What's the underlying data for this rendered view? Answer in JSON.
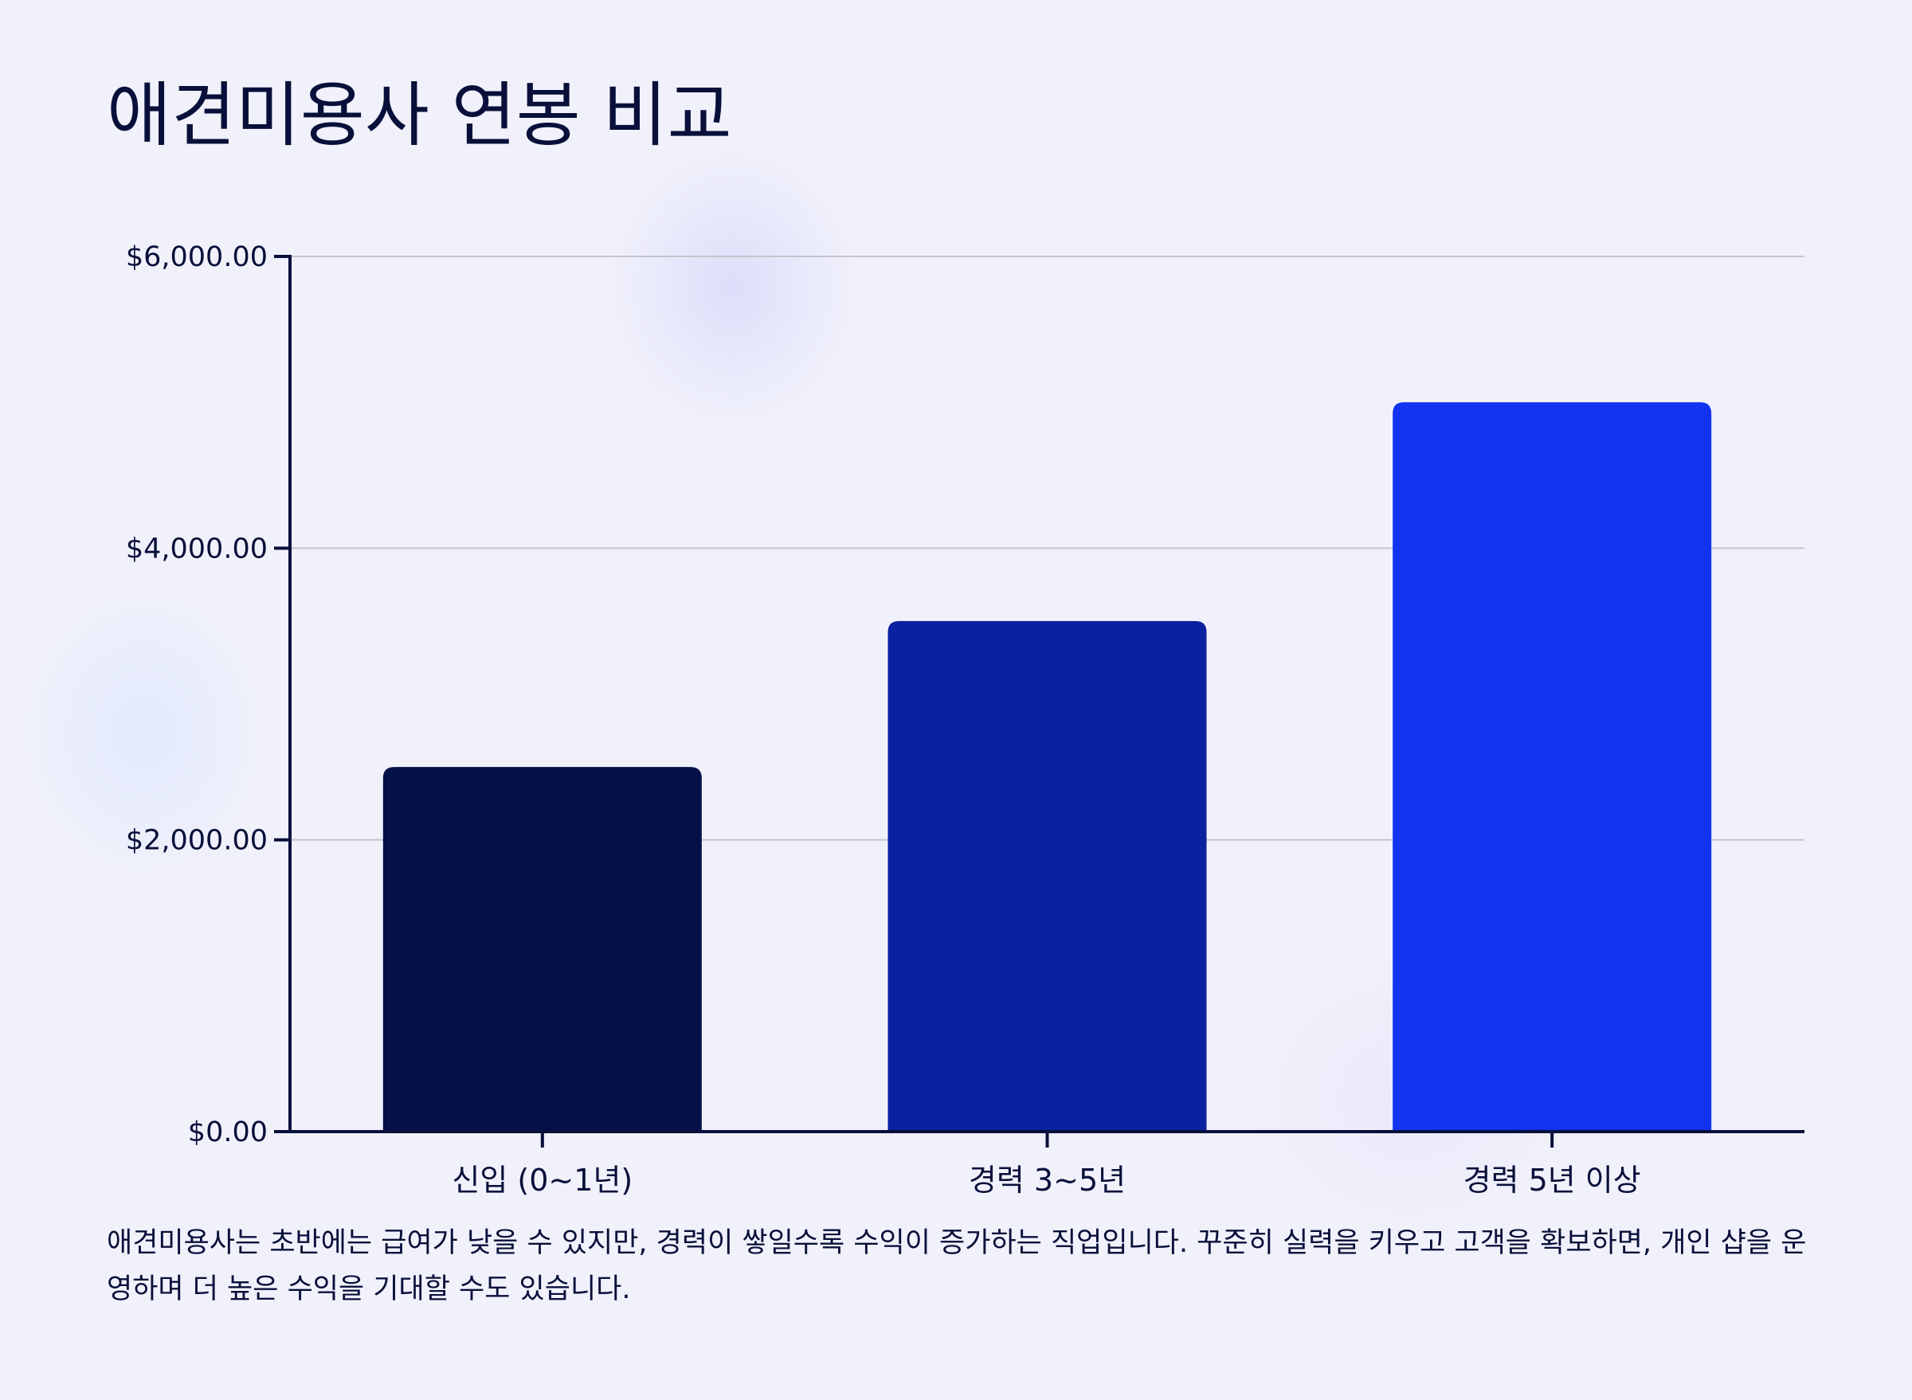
{
  "title": "애견미용사 연봉 비교",
  "description": "애견미용사는 초반에는 급여가 낮을 수 있지만, 경력이 쌓일수록 수익이 증가하는 직업입니다. 꾸준히 실력을 키우고 고객을 확보하면, 개인 샵을 운영하며 더 높은 수익을 기대할 수도 있습니다.",
  "colors": {
    "background": "#f1f1fb",
    "text": "#08103a",
    "axis": "#08103a",
    "grid": "#c4c4cc"
  },
  "chart_data": {
    "type": "bar",
    "categories": [
      "신입 (0~1년)",
      "경력 3~5년",
      "경력 5년 이상"
    ],
    "values": [
      2500,
      3500,
      5000
    ],
    "bar_colors": [
      "#041048",
      "#0a21a0",
      "#1233ef"
    ],
    "ylim": [
      0,
      6000
    ],
    "y_ticks": [
      0,
      2000,
      4000,
      6000
    ],
    "y_tick_labels": [
      "$0.00",
      "$2,000.00",
      "$4,000.00",
      "$6,000.00"
    ],
    "xlabel": "",
    "ylabel": "",
    "grid": true,
    "legend": "none"
  }
}
